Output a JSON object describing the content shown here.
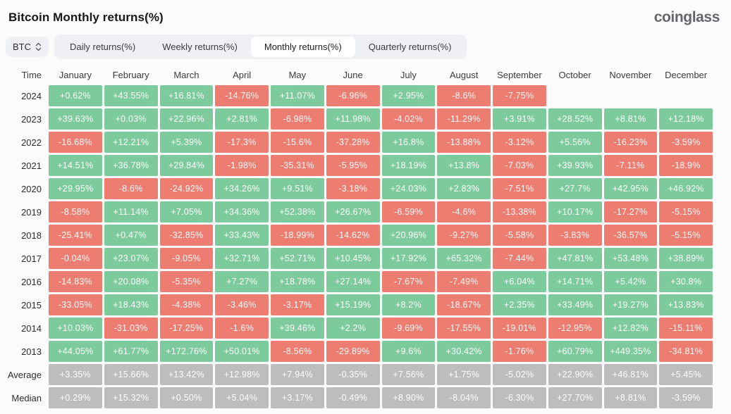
{
  "header": {
    "title": "Bitcoin Monthly returns(%)",
    "logo": "coinglass"
  },
  "controls": {
    "symbol_select": {
      "value": "BTC"
    },
    "tabs": [
      {
        "label": "Daily returns(%)",
        "active": false
      },
      {
        "label": "Weekly returns(%)",
        "active": false
      },
      {
        "label": "Monthly returns(%)",
        "active": true
      },
      {
        "label": "Quarterly returns(%)",
        "active": false
      }
    ]
  },
  "colors": {
    "positive": "#7dcb9c",
    "negative": "#ed7c71",
    "aggregate": "#bdbdbd"
  },
  "chart_data": {
    "type": "heatmap",
    "title": "Bitcoin Monthly returns(%)",
    "unit": "%",
    "row_header": "Time",
    "columns": [
      "January",
      "February",
      "March",
      "April",
      "May",
      "June",
      "July",
      "August",
      "September",
      "October",
      "November",
      "December"
    ],
    "legend": "green = positive return, red = negative return, gray = aggregate rows",
    "rows": [
      {
        "label": "2024",
        "kind": "year",
        "values": [
          "+0.62%",
          "+43.55%",
          "+16.81%",
          "-14.76%",
          "+11.07%",
          "-6.96%",
          "+2.95%",
          "-8.6%",
          "-7.75%",
          "",
          "",
          ""
        ]
      },
      {
        "label": "2023",
        "kind": "year",
        "values": [
          "+39.63%",
          "+0.03%",
          "+22.96%",
          "+2.81%",
          "-6.98%",
          "+11.98%",
          "-4.02%",
          "-11.29%",
          "+3.91%",
          "+28.52%",
          "+8.81%",
          "+12.18%"
        ]
      },
      {
        "label": "2022",
        "kind": "year",
        "values": [
          "-16.68%",
          "+12.21%",
          "+5.39%",
          "-17.3%",
          "-15.6%",
          "-37.28%",
          "+16.8%",
          "-13.88%",
          "-3.12%",
          "+5.56%",
          "-16.23%",
          "-3.59%"
        ]
      },
      {
        "label": "2021",
        "kind": "year",
        "values": [
          "+14.51%",
          "+36.78%",
          "+29.84%",
          "-1.98%",
          "-35.31%",
          "-5.95%",
          "+18.19%",
          "+13.8%",
          "-7.03%",
          "+39.93%",
          "-7.11%",
          "-18.9%"
        ]
      },
      {
        "label": "2020",
        "kind": "year",
        "values": [
          "+29.95%",
          "-8.6%",
          "-24.92%",
          "+34.26%",
          "+9.51%",
          "-3.18%",
          "+24.03%",
          "+2.83%",
          "-7.51%",
          "+27.7%",
          "+42.95%",
          "+46.92%"
        ]
      },
      {
        "label": "2019",
        "kind": "year",
        "values": [
          "-8.58%",
          "+11.14%",
          "+7.05%",
          "+34.36%",
          "+52.38%",
          "+26.67%",
          "-6.59%",
          "-4.6%",
          "-13.38%",
          "+10.17%",
          "-17.27%",
          "-5.15%"
        ]
      },
      {
        "label": "2018",
        "kind": "year",
        "values": [
          "-25.41%",
          "+0.47%",
          "-32.85%",
          "+33.43%",
          "-18.99%",
          "-14.62%",
          "+20.96%",
          "-9.27%",
          "-5.58%",
          "-3.83%",
          "-36.57%",
          "-5.15%"
        ]
      },
      {
        "label": "2017",
        "kind": "year",
        "values": [
          "-0.04%",
          "+23.07%",
          "-9.05%",
          "+32.71%",
          "+52.71%",
          "+10.45%",
          "+17.92%",
          "+65.32%",
          "-7.44%",
          "+47.81%",
          "+53.48%",
          "+38.89%"
        ]
      },
      {
        "label": "2016",
        "kind": "year",
        "values": [
          "-14.83%",
          "+20.08%",
          "-5.35%",
          "+7.27%",
          "+18.78%",
          "+27.14%",
          "-7.67%",
          "-7.49%",
          "+6.04%",
          "+14.71%",
          "+5.42%",
          "+30.8%"
        ]
      },
      {
        "label": "2015",
        "kind": "year",
        "values": [
          "-33.05%",
          "+18.43%",
          "-4.38%",
          "-3.46%",
          "-3.17%",
          "+15.19%",
          "+8.2%",
          "-18.67%",
          "+2.35%",
          "+33.49%",
          "+19.27%",
          "+13.83%"
        ]
      },
      {
        "label": "2014",
        "kind": "year",
        "values": [
          "+10.03%",
          "-31.03%",
          "-17.25%",
          "-1.6%",
          "+39.46%",
          "+2.2%",
          "-9.69%",
          "-17.55%",
          "-19.01%",
          "-12.95%",
          "+12.82%",
          "-15.11%"
        ]
      },
      {
        "label": "2013",
        "kind": "year",
        "values": [
          "+44.05%",
          "+61.77%",
          "+172.76%",
          "+50.01%",
          "-8.56%",
          "-29.89%",
          "+9.6%",
          "+30.42%",
          "-1.76%",
          "+60.79%",
          "+449.35%",
          "-34.81%"
        ]
      },
      {
        "label": "Average",
        "kind": "aggregate",
        "values": [
          "+3.35%",
          "+15.66%",
          "+13.42%",
          "+12.98%",
          "+7.94%",
          "-0.35%",
          "+7.56%",
          "+1.75%",
          "-5.02%",
          "+22.90%",
          "+46.81%",
          "+5.45%"
        ]
      },
      {
        "label": "Median",
        "kind": "aggregate",
        "values": [
          "+0.29%",
          "+15.32%",
          "+0.50%",
          "+5.04%",
          "+3.17%",
          "-0.49%",
          "+8.90%",
          "-8.04%",
          "-6.30%",
          "+27.70%",
          "+8.81%",
          "-3.59%"
        ]
      }
    ]
  }
}
